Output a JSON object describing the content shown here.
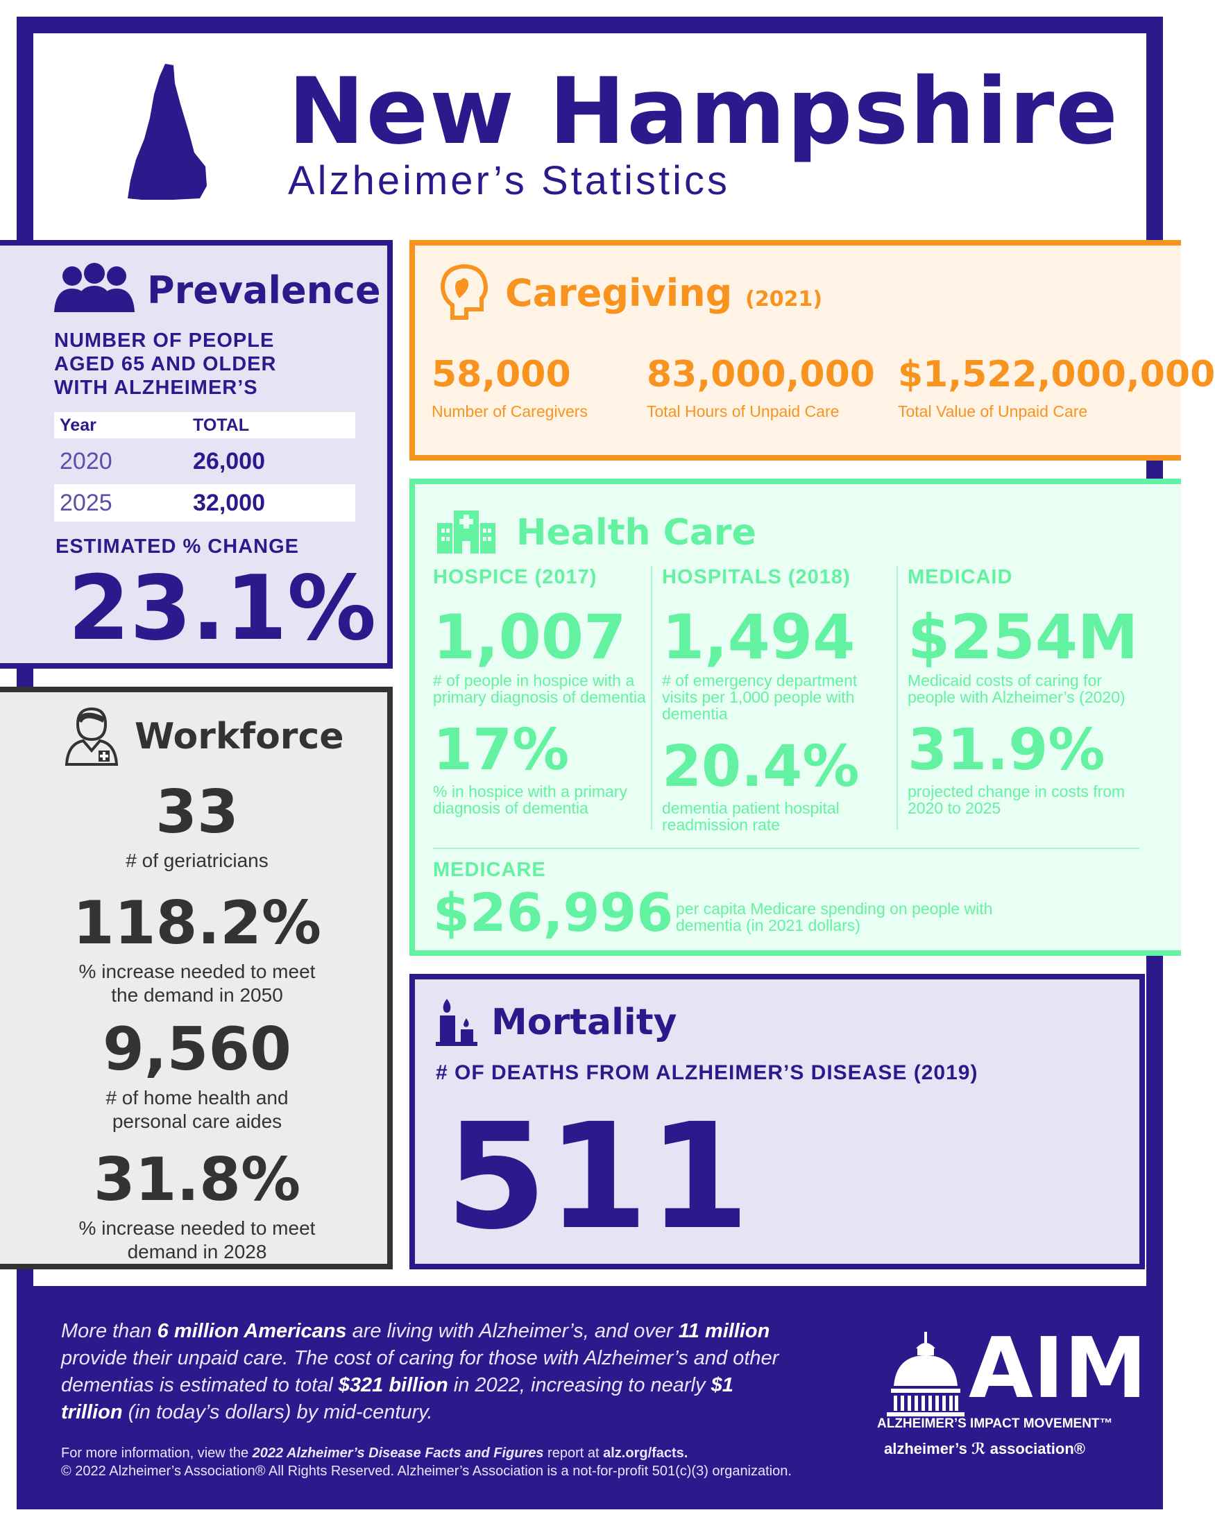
{
  "header": {
    "title": "New Hampshire",
    "subtitle": "Alzheimer’s Statistics"
  },
  "prevalence": {
    "title": "Prevalence",
    "description": "NUMBER OF PEOPLE AGED 65 AND OLDER WITH ALZHEIMER’S",
    "table": {
      "headers": [
        "Year",
        "TOTAL"
      ],
      "rows": [
        {
          "year": "2020",
          "total": "26,000"
        },
        {
          "year": "2025",
          "total": "32,000"
        }
      ]
    },
    "change_label": "ESTIMATED % CHANGE",
    "change_value": "23.1%"
  },
  "caregiving": {
    "title": "Caregiving",
    "year": "(2021)",
    "stats": [
      {
        "value": "58,000",
        "label": "Number of Caregivers"
      },
      {
        "value": "83,000,000",
        "label": "Total Hours of Unpaid Care"
      },
      {
        "value": "$1,522,000,000",
        "label": "Total Value of Unpaid Care"
      }
    ]
  },
  "health_care": {
    "title": "Health Care",
    "columns": [
      {
        "head": "HOSPICE (2017)",
        "value1": "1,007",
        "desc1": "# of people in hospice with a primary diagnosis of dementia",
        "value2": "17%",
        "desc2": "% in hospice with a primary diagnosis of dementia"
      },
      {
        "head": "HOSPITALS (2018)",
        "value1": "1,494",
        "desc1": "# of emergency department visits per 1,000 people with dementia",
        "value2": "20.4%",
        "desc2": "dementia patient hospital readmission rate"
      },
      {
        "head": "MEDICAID",
        "value1": "$254M",
        "desc1": "Medicaid costs of caring for people with Alzheimer’s (2020)",
        "value2": "31.9%",
        "desc2": "projected change in costs from 2020 to 2025"
      }
    ],
    "medicare": {
      "head": "MEDICARE",
      "value": "$26,996",
      "desc": "per capita Medicare spending on people with dementia (in 2021 dollars)"
    }
  },
  "workforce": {
    "title": "Workforce",
    "stats": [
      {
        "value": "33",
        "label": "# of geriatricians"
      },
      {
        "value": "118.2%",
        "label": "% increase needed to meet the demand in 2050"
      },
      {
        "value": "9,560",
        "label": "# of home health and personal care aides"
      },
      {
        "value": "31.8%",
        "label": "% increase needed to meet demand in 2028"
      }
    ]
  },
  "mortality": {
    "title": "Mortality",
    "label": "# OF DEATHS FROM ALZHEIMER’S DISEASE (2019)",
    "value": "511"
  },
  "footer": {
    "p1": "More than ",
    "b1": "6 million Americans",
    "p2": " are living with Alzheimer’s, and over ",
    "b2": "11 million",
    "p3": " provide their unpaid care. The cost of caring for those with Alzheimer’s and other dementias is estimated to total ",
    "b3": "$321 billion",
    "p4": " in 2022, increasing to nearly ",
    "b4": "$1 trillion",
    "p5": " (in today’s dollars) by mid-century.",
    "info_pre": "For more information, view the ",
    "info_bold": "2022 Alzheimer’s Disease Facts and Figures",
    "info_post": " report at ",
    "info_link": "alz.org/facts.",
    "copyright": "© 2022 Alzheimer’s Association® All Rights Reserved. Alzheimer’s Association is a not-for-profit 501(c)(3) organization.",
    "logo_text": "AIM",
    "logo_sub": "ALZHEIMER’S IMPACT MOVEMENT™",
    "logo_assoc": "alzheimer’s ℛ association®"
  },
  "colors": {
    "purple": "#2a1a8c",
    "orange": "#f7931e",
    "green": "#63f2a2",
    "gray": "#333333"
  },
  "icons": [
    "new-hampshire-map-icon",
    "people-icon",
    "caregiver-head-icon",
    "hospital-icon",
    "doctor-icon",
    "candle-icon",
    "capitol-icon"
  ]
}
